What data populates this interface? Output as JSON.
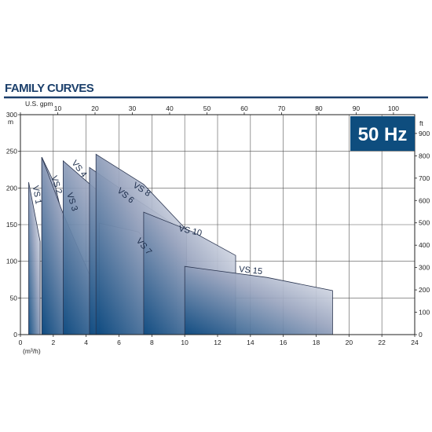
{
  "header": {
    "title": "FAMILY CURVES"
  },
  "badge": {
    "text": "50 Hz",
    "color": "#0e4d7e"
  },
  "chart_data": {
    "type": "area",
    "title": "FAMILY CURVES",
    "x_axis": {
      "unit": "(m³/h)",
      "range": [
        0,
        24
      ],
      "ticks": [
        0,
        2,
        4,
        6,
        8,
        10,
        12,
        14,
        16,
        18,
        20,
        22,
        24
      ]
    },
    "x2_axis": {
      "unit": "U.S. gpm",
      "range": [
        0,
        105.7
      ],
      "ticks": [
        0,
        10,
        20,
        30,
        40,
        50,
        60,
        70,
        80,
        90,
        100
      ]
    },
    "y_axis": {
      "unit": "m",
      "range": [
        0,
        300
      ],
      "ticks": [
        0,
        50,
        100,
        150,
        200,
        250,
        300
      ]
    },
    "y2_axis": {
      "unit": "ft",
      "range": [
        0,
        984
      ],
      "ticks": [
        0,
        100,
        200,
        300,
        400,
        500,
        600,
        700,
        800,
        900
      ]
    },
    "grid": true,
    "colors": {
      "dark": "#0d4a80",
      "light": "#f1f3f7",
      "outline": "#2a3550",
      "grid": "#555555"
    },
    "series": [
      {
        "name": "VS 1",
        "label_at": [
          0.85,
          190
        ],
        "label_rot": 80,
        "points": [
          [
            0.5,
            208
          ],
          [
            1.2,
            127
          ],
          [
            1.2,
            0
          ],
          [
            0.5,
            0
          ]
        ]
      },
      {
        "name": "VS 2",
        "label_at": [
          2.05,
          203
        ],
        "label_rot": 72,
        "points": [
          [
            1.3,
            242
          ],
          [
            2.1,
            205
          ],
          [
            2.85,
            132
          ],
          [
            2.85,
            0
          ],
          [
            1.3,
            0
          ]
        ]
      },
      {
        "name": "VS 3",
        "label_at": [
          3.0,
          180
        ],
        "label_rot": 72,
        "points": [
          [
            1.3,
            242
          ],
          [
            2.6,
            165
          ],
          [
            4.2,
            82
          ],
          [
            4.2,
            0
          ],
          [
            1.3,
            0
          ]
        ]
      },
      {
        "name": "VS 4",
        "label_at": [
          3.45,
          224
        ],
        "label_rot": 52,
        "points": [
          [
            2.6,
            237
          ],
          [
            4.6,
            198
          ],
          [
            7.5,
            152
          ],
          [
            7.5,
            0
          ],
          [
            2.6,
            0
          ]
        ]
      },
      {
        "name": "VS 6",
        "label_at": [
          6.3,
          187
        ],
        "label_rot": 40,
        "points": [
          [
            4.2,
            228
          ],
          [
            7.0,
            185
          ],
          [
            9.5,
            148
          ],
          [
            9.5,
            0
          ],
          [
            4.2,
            0
          ]
        ]
      },
      {
        "name": "VS 7",
        "label_at": [
          7.4,
          118
        ],
        "label_rot": 50,
        "points": [
          [
            4.8,
            152
          ],
          [
            7.2,
            140
          ],
          [
            9.1,
            80
          ],
          [
            9.1,
            0
          ],
          [
            4.8,
            0
          ]
        ]
      },
      {
        "name": "VS 8",
        "label_at": [
          7.3,
          195
        ],
        "label_rot": 32,
        "points": [
          [
            4.6,
            246
          ],
          [
            7.5,
            205
          ],
          [
            10.1,
            143
          ],
          [
            10.1,
            0
          ],
          [
            4.6,
            0
          ]
        ]
      },
      {
        "name": "VS 10",
        "label_at": [
          10.3,
          138
        ],
        "label_rot": 13,
        "points": [
          [
            7.5,
            167
          ],
          [
            10.5,
            140
          ],
          [
            13.1,
            108
          ],
          [
            13.1,
            0
          ],
          [
            7.5,
            0
          ]
        ]
      },
      {
        "name": "VS 15",
        "label_at": [
          14.0,
          84
        ],
        "label_rot": 6,
        "points": [
          [
            10.0,
            93
          ],
          [
            15.0,
            78
          ],
          [
            19.0,
            60
          ],
          [
            19.0,
            0
          ],
          [
            10.0,
            0
          ]
        ]
      }
    ]
  }
}
